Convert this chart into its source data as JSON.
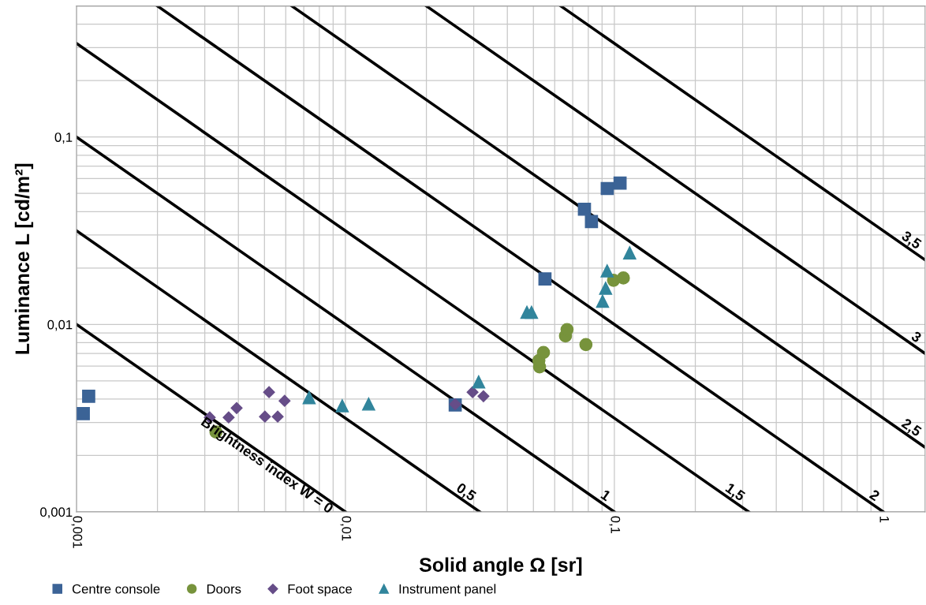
{
  "chart_data": {
    "type": "scatter",
    "xlabel": "Solid angle Ω [sr]",
    "ylabel": "Luminance L [cd/m²]",
    "log": "xy",
    "grid": true,
    "legend": "bottom",
    "xlim": [
      0.001,
      1.43
    ],
    "ylim": [
      0.001,
      0.5
    ],
    "xticks": [
      {
        "value": 0.001,
        "label": "0,001"
      },
      {
        "value": 0.01,
        "label": "0,01"
      },
      {
        "value": 0.1,
        "label": "0,1"
      },
      {
        "value": 1,
        "label": "1"
      }
    ],
    "yticks": [
      {
        "value": 0.001,
        "label": "0,001"
      },
      {
        "value": 0.01,
        "label": "0,01"
      },
      {
        "value": 0.1,
        "label": "0,1"
      }
    ],
    "series": [
      {
        "type": "line",
        "name": "Brightness index W = 0",
        "color": "#000000",
        "marker": "none",
        "x": [
          0.001,
          0.01
        ],
        "values": [
          0.01,
          0.001
        ]
      },
      {
        "type": "line",
        "name": "0,5",
        "color": "#000000",
        "marker": "none",
        "x": [
          0.001,
          0.0316
        ],
        "values": [
          0.0316,
          0.001
        ]
      },
      {
        "type": "line",
        "name": "1",
        "color": "#000000",
        "marker": "none",
        "x": [
          0.001,
          0.1
        ],
        "values": [
          0.1,
          0.001
        ]
      },
      {
        "type": "line",
        "name": "1,5",
        "color": "#000000",
        "marker": "none",
        "x": [
          0.001,
          0.316
        ],
        "values": [
          0.316,
          0.001
        ]
      },
      {
        "type": "line",
        "name": "2",
        "color": "#000000",
        "marker": "none",
        "x": [
          0.002,
          1
        ],
        "values": [
          0.5,
          0.001
        ]
      },
      {
        "type": "line",
        "name": "2,5",
        "color": "#000000",
        "marker": "none",
        "x": [
          0.00632,
          1.43
        ],
        "values": [
          0.5,
          0.00221
        ]
      },
      {
        "type": "line",
        "name": "3",
        "color": "#000000",
        "marker": "none",
        "x": [
          0.02,
          1.43
        ],
        "values": [
          0.5,
          0.007
        ]
      },
      {
        "type": "line",
        "name": "3,5",
        "color": "#000000",
        "marker": "none",
        "x": [
          0.0632,
          1.43
        ],
        "values": [
          0.5,
          0.0221
        ]
      },
      {
        "name": "Centre console",
        "color": "#3b6396",
        "marker": "square",
        "x": [
          0.00106,
          0.00111,
          0.0256,
          0.0552,
          0.0774,
          0.0822,
          0.0941,
          0.105
        ],
        "values": [
          0.00334,
          0.00414,
          0.00372,
          0.0175,
          0.0412,
          0.0354,
          0.0531,
          0.0568
        ]
      },
      {
        "name": "Doors",
        "color": "#77933c",
        "marker": "circle",
        "x": [
          0.0033,
          0.0527,
          0.0524,
          0.0545,
          0.0658,
          0.0667,
          0.0784,
          0.0993,
          0.108
        ],
        "values": [
          0.00267,
          0.00594,
          0.00642,
          0.00708,
          0.00868,
          0.00939,
          0.0078,
          0.0172,
          0.0177
        ]
      },
      {
        "name": "Foot space",
        "color": "#664d88",
        "marker": "diamond",
        "x": [
          0.00313,
          0.00368,
          0.00394,
          0.0052,
          0.00502,
          0.0056,
          0.00594,
          0.0256,
          0.0297,
          0.0326
        ],
        "values": [
          0.00319,
          0.00319,
          0.00358,
          0.00435,
          0.00322,
          0.00322,
          0.00391,
          0.00375,
          0.00435,
          0.00414
        ]
      },
      {
        "name": "Instrument panel",
        "color": "#31859c",
        "marker": "triangle",
        "x": [
          0.00733,
          0.00973,
          0.0122,
          0.0313,
          0.0473,
          0.0492,
          0.0904,
          0.0928,
          0.094,
          0.114
        ],
        "values": [
          0.00407,
          0.00368,
          0.00376,
          0.00494,
          0.0116,
          0.0116,
          0.0133,
          0.0156,
          0.0193,
          0.0241
        ]
      }
    ]
  }
}
